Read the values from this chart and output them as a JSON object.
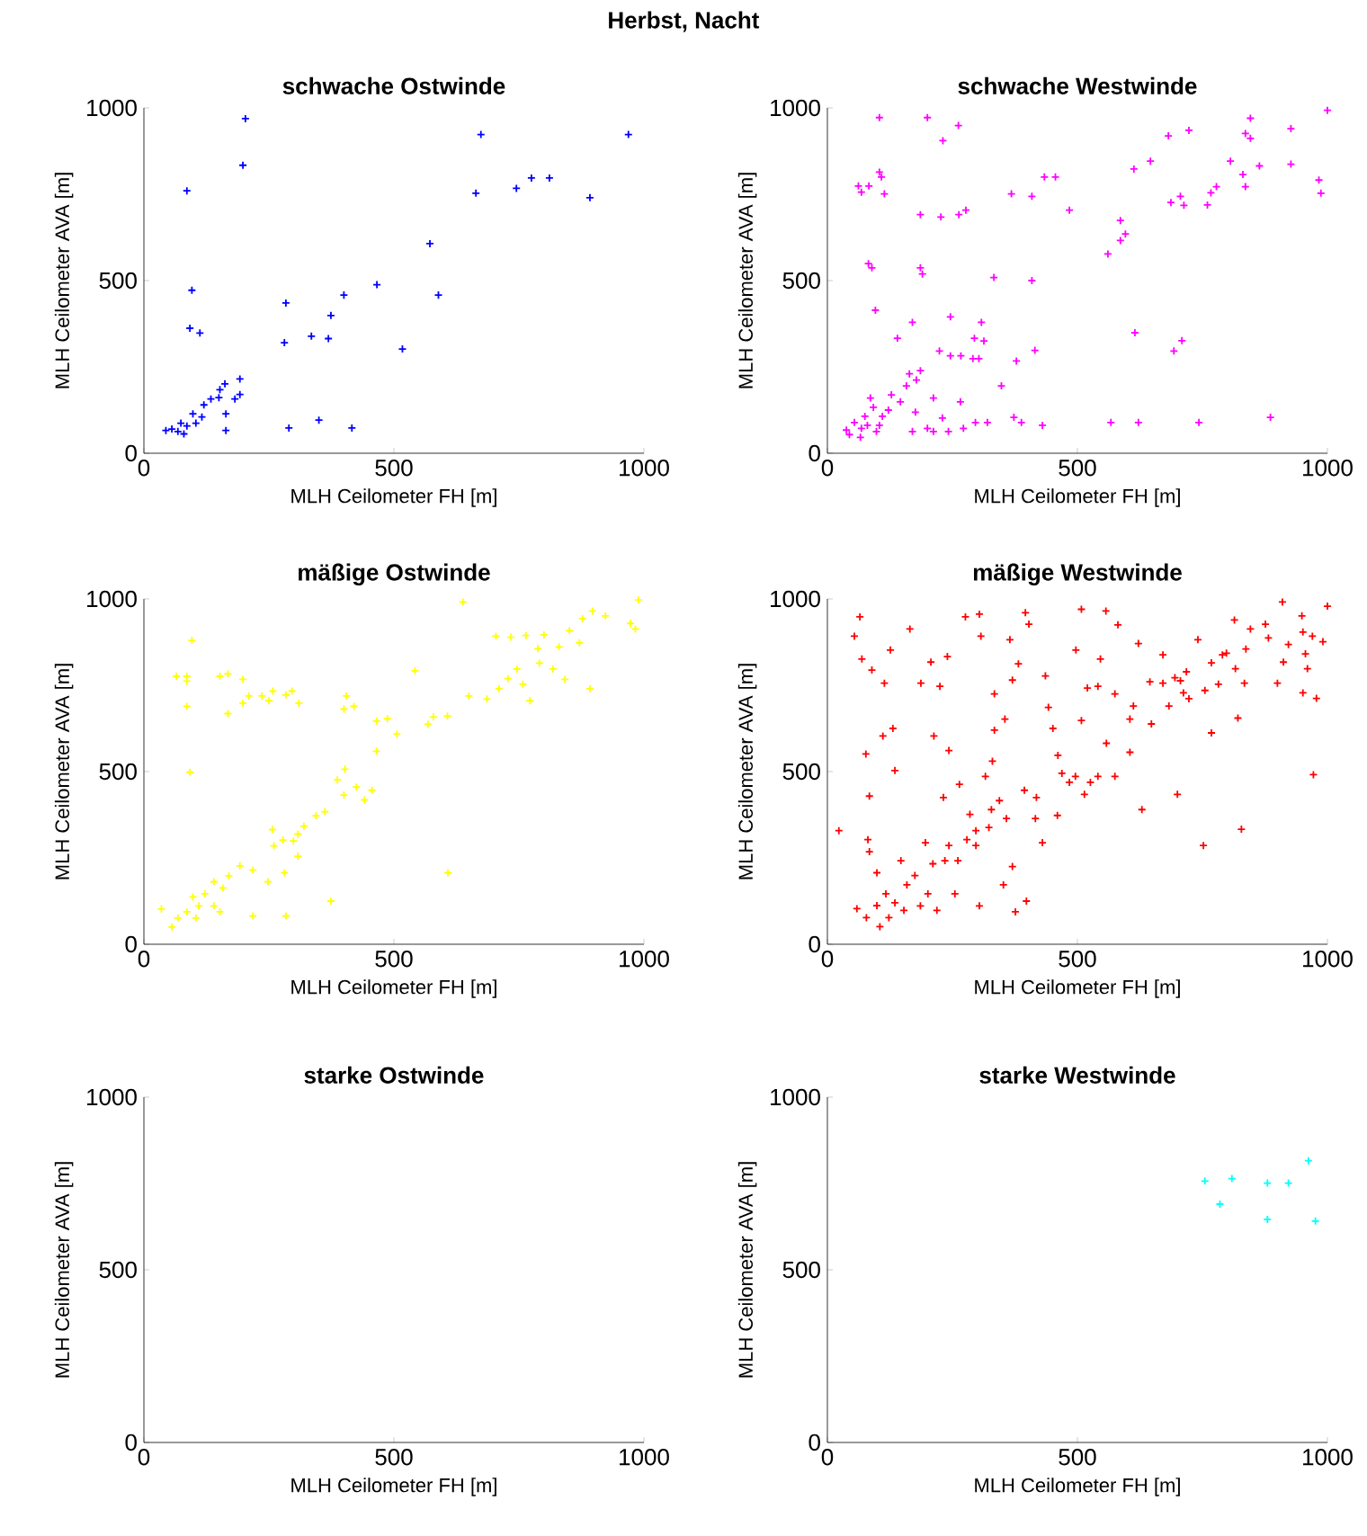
{
  "chart_data": [
    {
      "type": "scatter",
      "title": "schwache Ostwinde",
      "annotations": [
        "Herbst, Nacht"
      ],
      "xlabel": "MLH Ceilometer FH [m]",
      "ylabel": "MLH Ceilometer AVA [m]",
      "xlim": [
        0,
        1000
      ],
      "ylim": [
        0,
        1000
      ],
      "xticks": [
        0,
        500,
        1000
      ],
      "yticks": [
        0,
        500,
        1000
      ],
      "marker": "cross",
      "color": "#0000ff",
      "x": [
        203,
        198,
        86,
        96,
        92,
        112,
        284,
        281,
        335,
        369,
        374,
        400,
        466,
        517,
        572,
        589,
        664,
        674,
        745,
        775,
        811,
        892,
        969,
        290,
        350,
        416,
        164,
        44,
        56,
        68,
        80,
        86,
        98,
        116,
        120,
        134,
        150,
        152,
        162,
        164,
        182,
        192,
        192,
        104,
        74
      ],
      "values": [
        969,
        834,
        760,
        472,
        362,
        348,
        435,
        320,
        339,
        332,
        399,
        458,
        488,
        302,
        607,
        458,
        753,
        923,
        767,
        797,
        797,
        740,
        923,
        73,
        96,
        73,
        66,
        66,
        70,
        63,
        56,
        79,
        114,
        105,
        140,
        157,
        161,
        184,
        201,
        114,
        157,
        170,
        215,
        87,
        87
      ]
    },
    {
      "type": "scatter",
      "title": "schwache Westwinde",
      "xlabel": "MLH Ceilometer FH [m]",
      "ylabel": "MLH Ceilometer AVA [m]",
      "xlim": [
        0,
        1000
      ],
      "ylim": [
        0,
        1000
      ],
      "xticks": [
        0,
        500,
        1000
      ],
      "yticks": [
        0,
        500,
        1000
      ],
      "marker": "cross",
      "color": "#ff00ff",
      "x": [
        104,
        200,
        262,
        231,
        62,
        68,
        83,
        104,
        108,
        114,
        186,
        227,
        263,
        277,
        82,
        89,
        186,
        190,
        96,
        170,
        246,
        140,
        224,
        246,
        267,
        291,
        303,
        294,
        308,
        313,
        333,
        368,
        409,
        434,
        456,
        484,
        409,
        415,
        378,
        348,
        373,
        388,
        430,
        567,
        622,
        743,
        886,
        561,
        586,
        586,
        596,
        613,
        646,
        615,
        693,
        709,
        682,
        723,
        687,
        706,
        713,
        760,
        767,
        778,
        806,
        831,
        836,
        836,
        846,
        846,
        864,
        927,
        927,
        983,
        987,
        1000,
        44,
        66,
        38,
        75,
        86,
        92,
        104,
        110,
        98,
        122,
        128,
        146,
        158,
        164,
        178,
        186,
        170,
        176,
        212,
        212,
        230,
        242,
        266,
        272,
        296,
        320,
        200,
        68,
        80,
        54
      ],
      "values": [
        972,
        972,
        949,
        905,
        774,
        756,
        774,
        814,
        800,
        751,
        691,
        684,
        691,
        704,
        549,
        537,
        537,
        519,
        414,
        379,
        395,
        333,
        296,
        282,
        282,
        274,
        274,
        333,
        379,
        325,
        509,
        751,
        744,
        800,
        800,
        704,
        500,
        298,
        267,
        195,
        104,
        89,
        81,
        89,
        89,
        89,
        104,
        577,
        616,
        674,
        635,
        823,
        846,
        349,
        296,
        326,
        919,
        935,
        726,
        744,
        718,
        719,
        754,
        772,
        846,
        807,
        772,
        926,
        912,
        970,
        832,
        940,
        837,
        791,
        753,
        993,
        54,
        46,
        67,
        107,
        160,
        133,
        81,
        107,
        63,
        125,
        169,
        149,
        195,
        230,
        212,
        239,
        63,
        119,
        160,
        63,
        102,
        63,
        149,
        72,
        89,
        89,
        72,
        72,
        81,
        89
      ]
    },
    {
      "type": "scatter",
      "title": "mäßige Ostwinde",
      "xlabel": "MLH Ceilometer FH [m]",
      "ylabel": "MLH Ceilometer AVA [m]",
      "xlim": [
        0,
        1000
      ],
      "ylim": [
        0,
        1000
      ],
      "xticks": [
        0,
        500,
        1000
      ],
      "yticks": [
        0,
        500,
        1000
      ],
      "marker": "cross",
      "color": "#ffff00",
      "x": [
        638,
        989,
        96,
        65,
        86,
        86,
        86,
        92,
        152,
        168,
        198,
        168,
        198,
        210,
        236,
        258,
        284,
        296,
        310,
        250,
        405,
        400,
        420,
        542,
        465,
        487,
        506,
        465,
        568,
        579,
        607,
        387,
        402,
        425,
        400,
        456,
        441,
        362,
        344,
        320,
        308,
        299,
        278,
        260,
        257,
        308,
        281,
        608,
        374,
        284,
        218,
        248,
        218,
        192,
        170,
        158,
        140,
        122,
        110,
        86,
        68,
        56,
        35,
        98,
        140,
        152,
        104,
        650,
        686,
        710,
        728,
        746,
        758,
        772,
        704,
        734,
        791,
        800,
        830,
        842,
        851,
        871,
        877,
        892,
        897,
        923,
        973,
        983,
        818,
        764,
        788
      ],
      "values": [
        991,
        997,
        880,
        776,
        776,
        762,
        689,
        498,
        776,
        783,
        767,
        668,
        698,
        719,
        719,
        733,
        722,
        733,
        698,
        705,
        719,
        681,
        689,
        792,
        646,
        653,
        609,
        559,
        637,
        658,
        661,
        476,
        507,
        455,
        432,
        446,
        418,
        384,
        372,
        342,
        319,
        299,
        302,
        285,
        332,
        255,
        207,
        207,
        125,
        82,
        82,
        181,
        215,
        227,
        198,
        163,
        181,
        146,
        111,
        94,
        76,
        50,
        102,
        137,
        111,
        94,
        76,
        719,
        710,
        740,
        769,
        797,
        753,
        705,
        892,
        889,
        814,
        896,
        861,
        767,
        908,
        873,
        943,
        740,
        965,
        951,
        929,
        913,
        797,
        894,
        856
      ]
    },
    {
      "type": "scatter",
      "title": "mäßige Westwinde",
      "xlabel": "MLH Ceilometer FH [m]",
      "ylabel": "MLH Ceilometer AVA [m]",
      "xlim": [
        0,
        1000
      ],
      "ylim": [
        0,
        1000
      ],
      "xticks": [
        0,
        500,
        1000
      ],
      "yticks": [
        0,
        500,
        1000
      ],
      "marker": "cross",
      "color": "#ff0000",
      "x": [
        23,
        65,
        54,
        69,
        89,
        77,
        84,
        81,
        84,
        99,
        59,
        78,
        99,
        117,
        135,
        153,
        105,
        123,
        147,
        135,
        131,
        111,
        114,
        126,
        165,
        187,
        207,
        225,
        240,
        243,
        213,
        276,
        304,
        307,
        334,
        365,
        382,
        396,
        403,
        370,
        355,
        334,
        316,
        330,
        264,
        232,
        285,
        297,
        328,
        344,
        323,
        243,
        235,
        196,
        211,
        175,
        159,
        201,
        186,
        219,
        255,
        304,
        352,
        370,
        376,
        398,
        261,
        279,
        297,
        358,
        394,
        418,
        436,
        442,
        451,
        461,
        469,
        484,
        496,
        460,
        430,
        416,
        497,
        508,
        520,
        508,
        541,
        546,
        557,
        581,
        575,
        558,
        541,
        526,
        514,
        575,
        605,
        605,
        612,
        622,
        629,
        645,
        648,
        671,
        683,
        700,
        706,
        718,
        723,
        741,
        752,
        768,
        755,
        782,
        768,
        790,
        814,
        821,
        828,
        834,
        846,
        816,
        798,
        837,
        876,
        882,
        900,
        910,
        912,
        922,
        949,
        951,
        956,
        951,
        960,
        970,
        972,
        978,
        991,
        1000,
        695,
        671,
        712
      ],
      "values": [
        329,
        948,
        892,
        826,
        794,
        551,
        429,
        303,
        268,
        207,
        103,
        77,
        112,
        146,
        120,
        98,
        51,
        77,
        242,
        503,
        625,
        603,
        756,
        852,
        913,
        756,
        817,
        747,
        833,
        561,
        603,
        948,
        956,
        892,
        725,
        882,
        812,
        960,
        927,
        765,
        652,
        620,
        486,
        530,
        463,
        425,
        376,
        329,
        390,
        416,
        338,
        286,
        242,
        294,
        233,
        199,
        172,
        146,
        111,
        98,
        146,
        111,
        172,
        225,
        94,
        125,
        242,
        303,
        286,
        364,
        446,
        425,
        777,
        686,
        625,
        547,
        495,
        469,
        486,
        373,
        294,
        364,
        852,
        970,
        742,
        648,
        747,
        826,
        965,
        925,
        725,
        582,
        486,
        469,
        434,
        486,
        652,
        556,
        690,
        871,
        390,
        760,
        638,
        838,
        690,
        434,
        763,
        789,
        711,
        882,
        286,
        612,
        735,
        753,
        815,
        838,
        939,
        655,
        333,
        756,
        913,
        798,
        843,
        855,
        927,
        887,
        756,
        991,
        817,
        868,
        951,
        904,
        841,
        728,
        798,
        892,
        491,
        712,
        876,
        979,
        772,
        756,
        728
      ]
    },
    {
      "type": "scatter",
      "title": "starke Ostwinde",
      "xlabel": "MLH Ceilometer FH [m]",
      "ylabel": "MLH Ceilometer AVA [m]",
      "xlim": [
        0,
        1000
      ],
      "ylim": [
        0,
        1000
      ],
      "xticks": [
        0,
        500,
        1000
      ],
      "yticks": [
        0,
        500,
        1000
      ]
    },
    {
      "type": "scatter",
      "title": "starke Westwinde",
      "xlabel": "MLH Ceilometer FH [m]",
      "ylabel": "MLH Ceilometer AVA [m]",
      "xlim": [
        0,
        1000
      ],
      "ylim": [
        0,
        1000
      ],
      "xticks": [
        0,
        500,
        1000
      ],
      "yticks": [
        0,
        500,
        1000
      ],
      "marker": "cross",
      "color": "#00ffff",
      "x": [
        755,
        785,
        809,
        880,
        880,
        922,
        962,
        976
      ],
      "values": [
        757,
        690,
        764,
        751,
        646,
        751,
        816,
        641
      ]
    }
  ]
}
